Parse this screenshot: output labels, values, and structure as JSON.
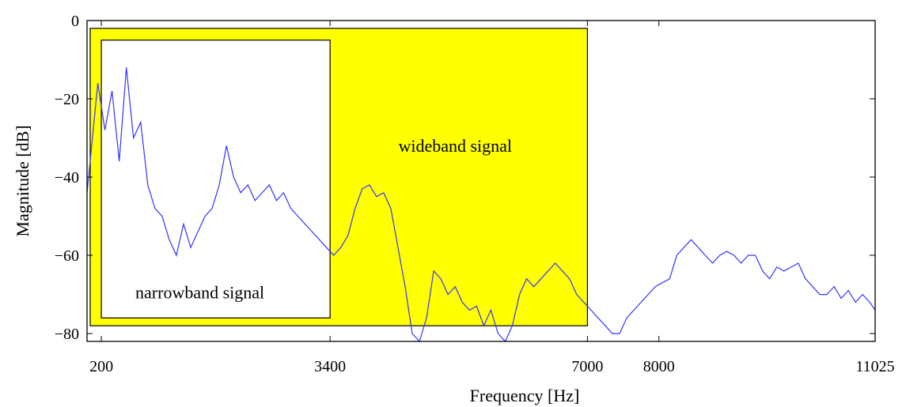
{
  "chart_data": {
    "type": "line",
    "title": "",
    "xlabel": "Frequency [Hz]",
    "ylabel": "Magnitude [dB]",
    "xlim": [
      0,
      11025
    ],
    "ylim": [
      -82,
      0
    ],
    "x_ticks": [
      200,
      3400,
      7000,
      8000,
      11025
    ],
    "y_ticks": [
      0,
      -20,
      -40,
      -60,
      -80
    ],
    "grid": false,
    "regions": [
      {
        "name": "wideband",
        "label": "wideband signal",
        "x_range": [
          0,
          7000
        ],
        "y_range": [
          -78,
          -2
        ],
        "color": "#ffff00"
      },
      {
        "name": "narrowband",
        "label": "narrowband signal",
        "x_range": [
          200,
          3400
        ],
        "y_range": [
          -76,
          -5
        ],
        "color": "#ffffff"
      }
    ],
    "series": [
      {
        "color": "#3333ff",
        "x": [
          0,
          150,
          250,
          350,
          450,
          550,
          650,
          750,
          850,
          950,
          1050,
          1150,
          1250,
          1350,
          1450,
          1550,
          1650,
          1750,
          1850,
          1950,
          2050,
          2150,
          2250,
          2350,
          2450,
          2550,
          2650,
          2750,
          2850,
          2950,
          3050,
          3150,
          3250,
          3350,
          3450,
          3550,
          3650,
          3750,
          3850,
          3950,
          4050,
          4150,
          4250,
          4350,
          4450,
          4550,
          4650,
          4750,
          4850,
          4950,
          5050,
          5150,
          5250,
          5350,
          5450,
          5550,
          5650,
          5750,
          5850,
          5950,
          6050,
          6150,
          6250,
          6350,
          6450,
          6550,
          6650,
          6750,
          6850,
          6950,
          7050,
          7150,
          7250,
          7350,
          7450,
          7550,
          7650,
          7750,
          7850,
          7950,
          8050,
          8150,
          8250,
          8350,
          8450,
          8550,
          8650,
          8750,
          8850,
          8950,
          9050,
          9150,
          9250,
          9350,
          9450,
          9550,
          9650,
          9750,
          9850,
          9950,
          10050,
          10150,
          10250,
          10350,
          10450,
          10550,
          10650,
          10750,
          10850,
          10950,
          11025
        ],
        "y": [
          -44,
          -16,
          -28,
          -18,
          -36,
          -12,
          -30,
          -26,
          -42,
          -48,
          -50,
          -56,
          -60,
          -52,
          -58,
          -54,
          -50,
          -48,
          -42,
          -32,
          -40,
          -44,
          -42,
          -46,
          -44,
          -42,
          -46,
          -44,
          -48,
          -50,
          -52,
          -54,
          -56,
          -58,
          -60,
          -58,
          -55,
          -48,
          -43,
          -42,
          -45,
          -44,
          -48,
          -58,
          -68,
          -80,
          -82,
          -76,
          -64,
          -66,
          -70,
          -68,
          -72,
          -74,
          -73,
          -78,
          -74,
          -80,
          -82,
          -78,
          -70,
          -66,
          -68,
          -66,
          -64,
          -62,
          -64,
          -66,
          -70,
          -72,
          -74,
          -76,
          -78,
          -80,
          -80,
          -76,
          -74,
          -72,
          -70,
          -68,
          -67,
          -66,
          -60,
          -58,
          -56,
          -58,
          -60,
          -62,
          -60,
          -59,
          -60,
          -62,
          -60,
          -60,
          -64,
          -66,
          -63,
          -64,
          -63,
          -62,
          -66,
          -68,
          -70,
          -70,
          -68,
          -71,
          -69,
          -72,
          -70,
          -72,
          -74
        ]
      }
    ]
  }
}
